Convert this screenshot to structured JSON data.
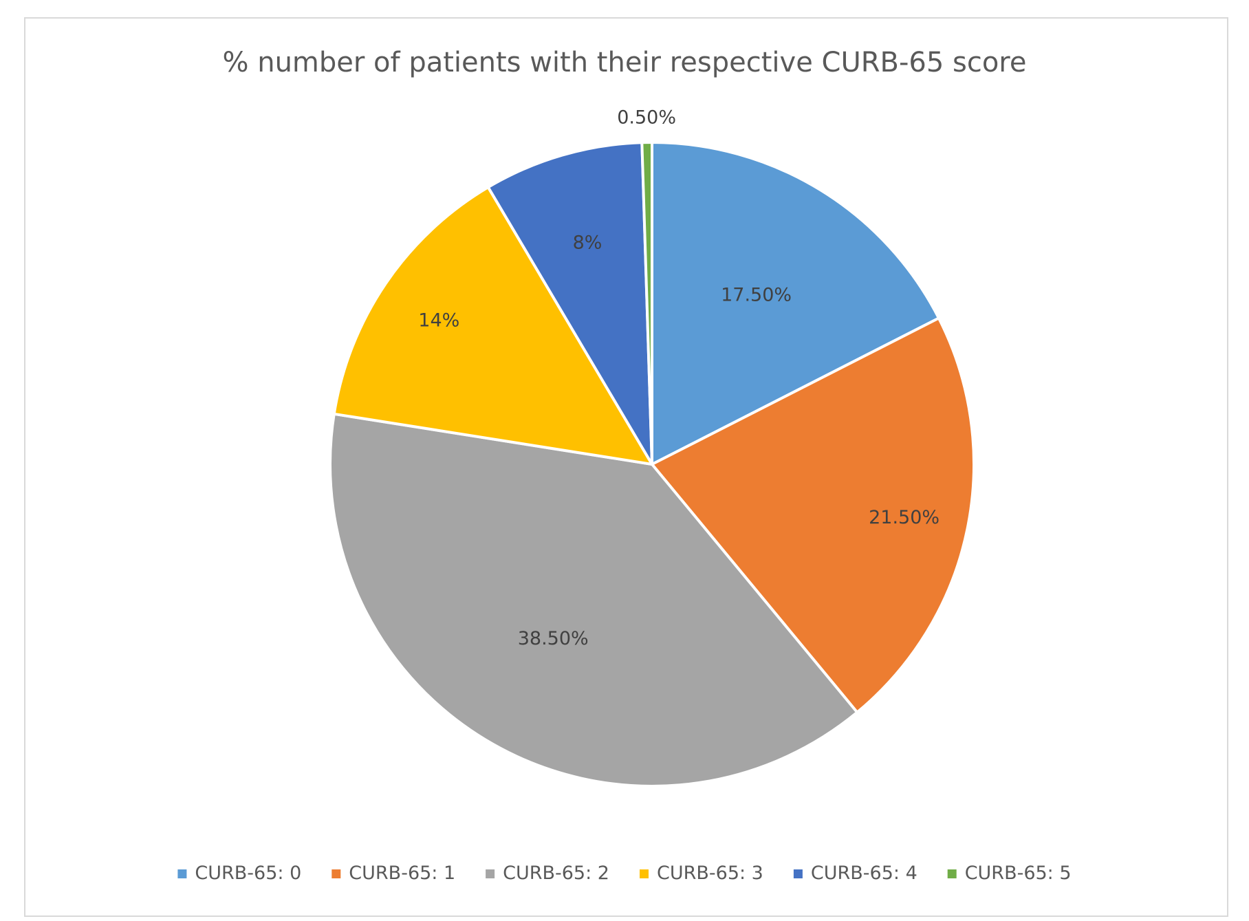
{
  "chart_data": {
    "type": "pie",
    "title": "% number of patients with their respective CURB-65 score",
    "legend_position": "bottom",
    "slices": [
      {
        "category": "CURB-65: 0",
        "value": 17.5,
        "label": "17.50%",
        "color": "#5B9BD5"
      },
      {
        "category": "CURB-65: 1",
        "value": 21.5,
        "label": "21.50%",
        "color": "#ED7D31"
      },
      {
        "category": "CURB-65: 2",
        "value": 38.5,
        "label": "38.50%",
        "color": "#A5A5A5"
      },
      {
        "category": "CURB-65: 3",
        "value": 14,
        "label": "14%",
        "color": "#FFC000"
      },
      {
        "category": "CURB-65: 4",
        "value": 8,
        "label": "8%",
        "color": "#4472C4"
      },
      {
        "category": "CURB-65: 5",
        "value": 0.5,
        "label": "0.50%",
        "color": "#70AD47"
      }
    ]
  }
}
